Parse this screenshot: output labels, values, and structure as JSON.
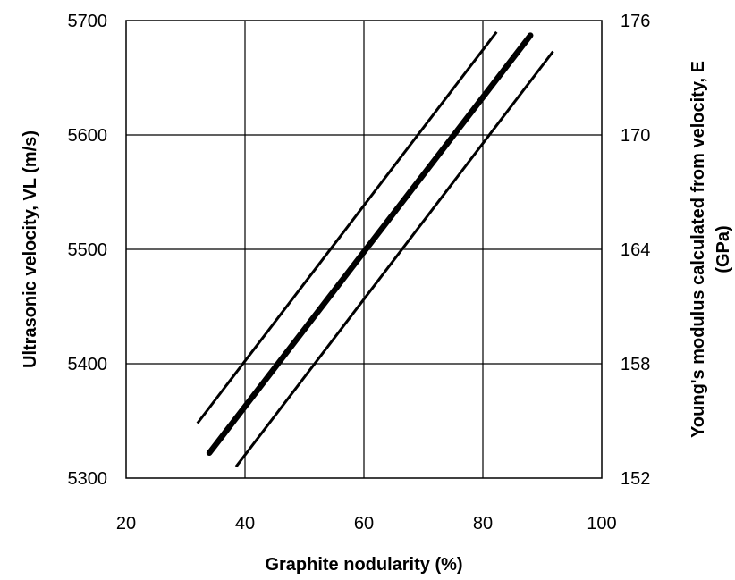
{
  "chart_data": {
    "type": "line",
    "title": "",
    "xlabel": "Graphite nodularity (%)",
    "ylabel": "Ultrasonic velocity, VL (m/s)",
    "y2label_line1": "Young's modulus calculated from velocity, E",
    "y2label_line2": "(GPa)",
    "xlim": [
      20,
      100
    ],
    "ylim": [
      5300,
      5700
    ],
    "y2lim": [
      152,
      176
    ],
    "xticks": [
      "20",
      "40",
      "60",
      "80",
      "100"
    ],
    "yticks": [
      "5300",
      "5400",
      "5500",
      "5600",
      "5700"
    ],
    "y2ticks": [
      "152",
      "158",
      "164",
      "170",
      "176"
    ],
    "grid": true,
    "legend": "none",
    "series": [
      {
        "role": "upper bound",
        "color": "#000000",
        "x": [
          32,
          82.3
        ],
        "y": [
          5348,
          5690
        ]
      },
      {
        "role": "mean",
        "color": "#000000",
        "x": [
          34,
          88
        ],
        "y": [
          5322,
          5687
        ]
      },
      {
        "role": "lower bound",
        "color": "#000000",
        "x": [
          38.5,
          91.8
        ],
        "y": [
          5310,
          5673
        ]
      }
    ]
  }
}
